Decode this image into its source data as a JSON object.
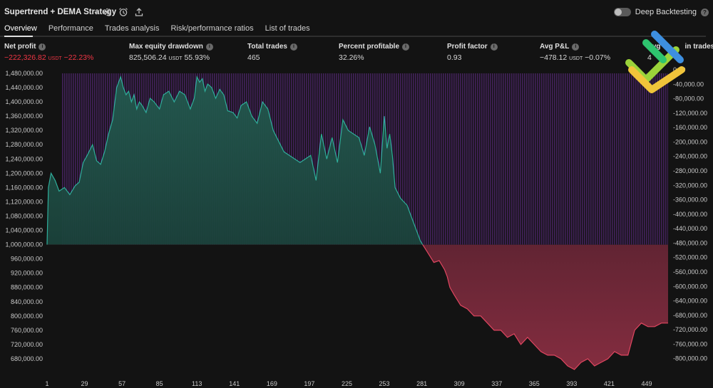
{
  "header": {
    "title": "Supertrend + DEMA Strategy",
    "deep_backtesting_label": "Deep Backtesting"
  },
  "tabs": [
    {
      "label": "Overview"
    },
    {
      "label": "Performance"
    },
    {
      "label": "Trades analysis"
    },
    {
      "label": "Risk/performance ratios"
    },
    {
      "label": "List of trades"
    }
  ],
  "metrics": {
    "net_profit": {
      "label": "Net profit",
      "value": "−222,326.82",
      "unit": "USDT",
      "pct": "−22.23%"
    },
    "max_drawdown": {
      "label": "Max equity drawdown",
      "value": "825,506.24",
      "unit": "USDT",
      "pct": "55.93%"
    },
    "total_trades": {
      "label": "Total trades",
      "value": "465"
    },
    "percent_profitable": {
      "label": "Percent profitable",
      "value": "32.26%"
    },
    "profit_factor": {
      "label": "Profit factor",
      "value": "0.93"
    },
    "avg_pnl": {
      "label": "Avg P&L",
      "value": "−478.12",
      "unit": "USDT",
      "pct": "−0.07%"
    },
    "avg_bars": {
      "label": "Avg",
      "label_tail": "in trades",
      "value": "4"
    }
  },
  "colors": {
    "background": "#131313",
    "equity_line": "#2fae9b",
    "profit_fill": "#1f4d44",
    "loss_line": "#e04660",
    "loss_fill": "#7a2a3c",
    "drawdown_bars": "#4a2466",
    "negative_text": "#f23645"
  },
  "chart_data": {
    "type": "area",
    "x_ticks": [
      "1",
      "29",
      "57",
      "85",
      "113",
      "141",
      "169",
      "197",
      "225",
      "253",
      "281",
      "309",
      "337",
      "365",
      "393",
      "421",
      "449"
    ],
    "x_range": [
      1,
      465
    ],
    "left_axis": {
      "ticks": [
        "1,480,000.00",
        "1,440,000.00",
        "1,400,000.00",
        "1,360,000.00",
        "1,320,000.00",
        "1,280,000.00",
        "1,240,000.00",
        "1,200,000.00",
        "1,160,000.00",
        "1,120,000.00",
        "1,080,000.00",
        "1,040,000.00",
        "1,000,000.00",
        "960,000.00",
        "920,000.00",
        "880,000.00",
        "840,000.00",
        "800,000.00",
        "760,000.00",
        "720,000.00",
        "680,000.00"
      ],
      "range": [
        640000,
        1490000
      ]
    },
    "right_axis": {
      "ticks": [
        "0.00",
        "-40,000.00",
        "-80,000.00",
        "-120,000.00",
        "-160,000.00",
        "-200,000.00",
        "-240,000.00",
        "-280,000.00",
        "-320,000.00",
        "-360,000.00",
        "-400,000.00",
        "-440,000.00",
        "-480,000.00",
        "-520,000.00",
        "-560,000.00",
        "-600,000.00",
        "-640,000.00",
        "-680,000.00",
        "-720,000.00",
        "-760,000.00",
        "-800,000.00"
      ],
      "range": [
        -840000,
        0
      ]
    },
    "baseline": 1000000,
    "series": [
      {
        "values": {
          "x": [
            1,
            2,
            4,
            7,
            10,
            14,
            18,
            22,
            25,
            28,
            31,
            35,
            38,
            41,
            44,
            47,
            50,
            53,
            56,
            58,
            60,
            62,
            64,
            66,
            68,
            70,
            72,
            75,
            78,
            81,
            85,
            88,
            92,
            96,
            100,
            104,
            108,
            111,
            113,
            115,
            117,
            119,
            121,
            124,
            127,
            130,
            133,
            136,
            140,
            143,
            146,
            150,
            154,
            158,
            162,
            166,
            170,
            174,
            178,
            182,
            186,
            190,
            194,
            198,
            202,
            206,
            210,
            214,
            218,
            222,
            226,
            230,
            234,
            238,
            242,
            246,
            250,
            253,
            255,
            257,
            259,
            261,
            265,
            270,
            275,
            280,
            285,
            290,
            294,
            298,
            300,
            302,
            305,
            310,
            315,
            320,
            325,
            330,
            335,
            340,
            345,
            350,
            355,
            360,
            365,
            370,
            375,
            380,
            385,
            390,
            395,
            400,
            405,
            410,
            415,
            420,
            425,
            430,
            435,
            440,
            445,
            450,
            455,
            460,
            465
          ],
          "y": [
            1000000,
            1160000,
            1200000,
            1180000,
            1150000,
            1160000,
            1140000,
            1165000,
            1175000,
            1230000,
            1250000,
            1280000,
            1235000,
            1225000,
            1260000,
            1310000,
            1350000,
            1440000,
            1470000,
            1440000,
            1420000,
            1430000,
            1400000,
            1420000,
            1380000,
            1400000,
            1390000,
            1370000,
            1410000,
            1400000,
            1380000,
            1420000,
            1430000,
            1400000,
            1430000,
            1420000,
            1380000,
            1410000,
            1470000,
            1455000,
            1465000,
            1430000,
            1450000,
            1440000,
            1410000,
            1435000,
            1420000,
            1375000,
            1370000,
            1355000,
            1390000,
            1400000,
            1360000,
            1340000,
            1400000,
            1380000,
            1320000,
            1290000,
            1260000,
            1250000,
            1240000,
            1230000,
            1240000,
            1250000,
            1180000,
            1310000,
            1240000,
            1300000,
            1230000,
            1350000,
            1320000,
            1310000,
            1300000,
            1250000,
            1330000,
            1280000,
            1200000,
            1360000,
            1270000,
            1310000,
            1250000,
            1160000,
            1130000,
            1110000,
            1060000,
            1010000,
            980000,
            950000,
            955000,
            930000,
            910000,
            880000,
            860000,
            830000,
            820000,
            800000,
            800000,
            780000,
            760000,
            760000,
            740000,
            750000,
            720000,
            740000,
            720000,
            700000,
            690000,
            690000,
            680000,
            660000,
            650000,
            670000,
            680000,
            660000,
            670000,
            680000,
            700000,
            690000,
            690000,
            760000,
            780000,
            770000,
            770000,
            780000,
            780000
          ]
        }
      }
    ]
  }
}
